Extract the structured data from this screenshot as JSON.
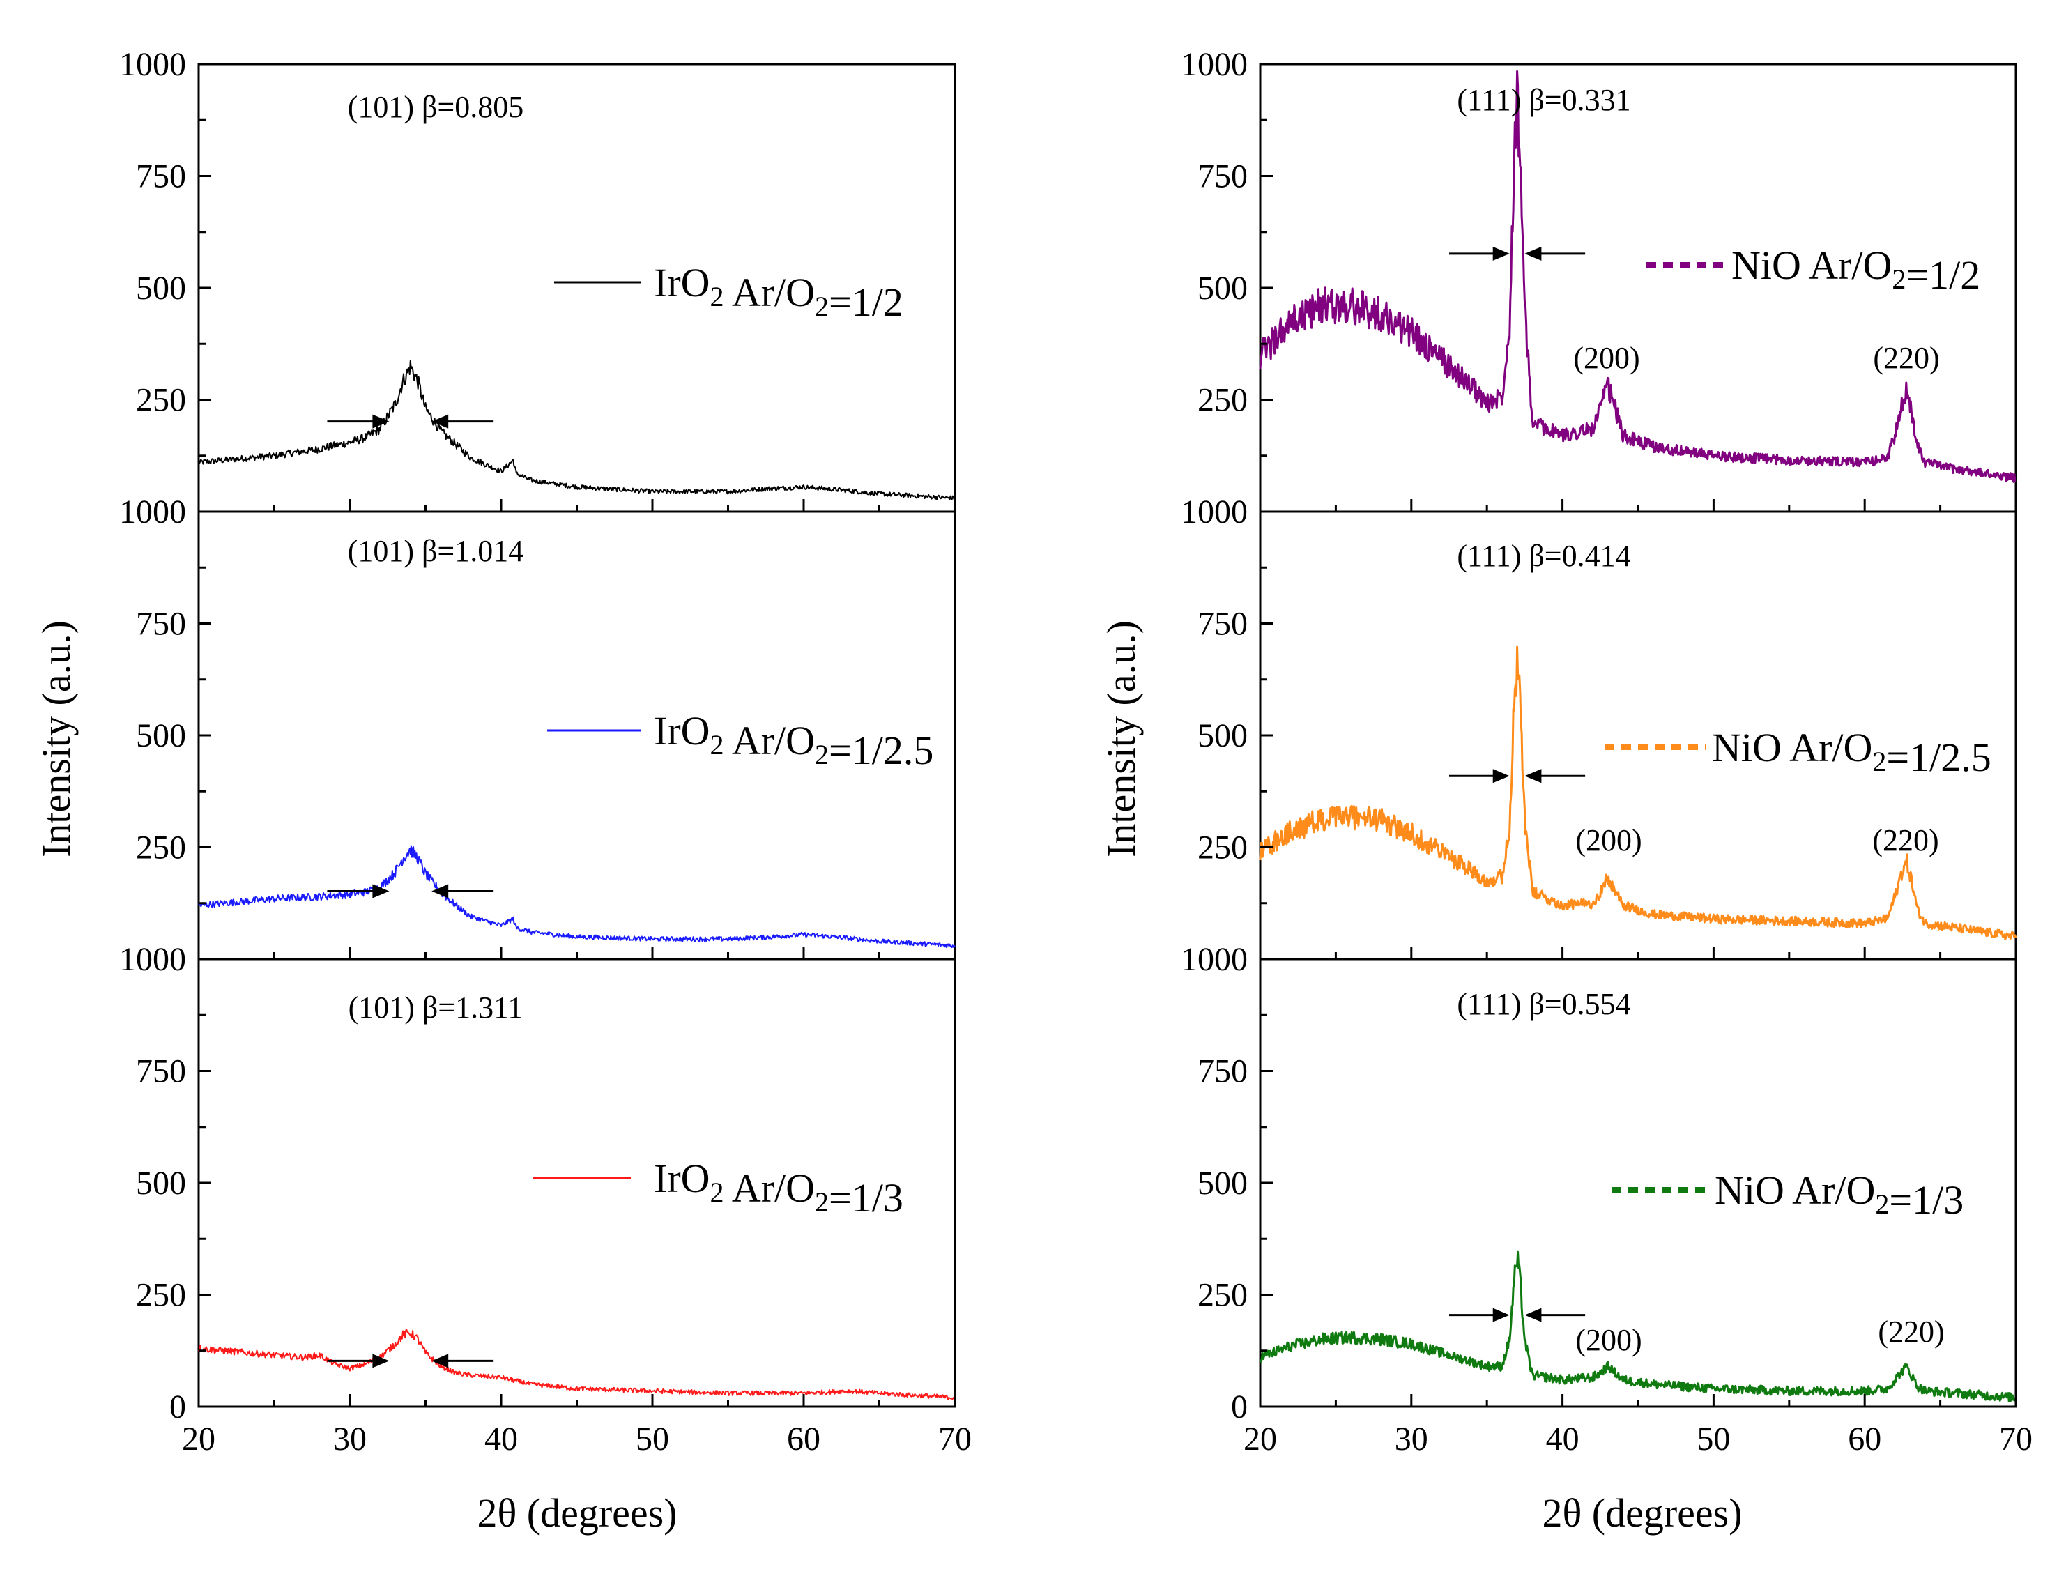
{
  "figure": {
    "left": {
      "ylabel": "Intensity (a.u.)",
      "xlabel": "2θ (degrees)",
      "x_ticks": [
        "20",
        "30",
        "40",
        "50",
        "60",
        "70"
      ],
      "y_ticks": [
        "1000",
        "750",
        "500",
        "250",
        "0"
      ]
    },
    "right": {
      "ylabel": "Intensity (a.u.)",
      "xlabel": "2θ (degrees)",
      "x_ticks": [
        "20",
        "30",
        "40",
        "50",
        "60",
        "70"
      ],
      "y_ticks": [
        "1000",
        "750",
        "500",
        "250",
        "0"
      ]
    }
  },
  "chart_data": [
    {
      "type": "line",
      "xlim": [
        20,
        70
      ],
      "ylim": [
        0,
        1000
      ],
      "grid": false,
      "legend_position": "right",
      "series": [
        {
          "name": "IrO₂ Ar/O₂=1/2",
          "legend": {
            "pre": "IrO",
            "sub1": "2",
            "mid": " Ar/O",
            "sub2": "2",
            "post": "=1/2"
          },
          "color": "#000000",
          "dash": "solid",
          "x": [
            20,
            25,
            28,
            30,
            31,
            32,
            33,
            33.5,
            34,
            34.5,
            35,
            36,
            37,
            38,
            40,
            40.8,
            41,
            42,
            45,
            50,
            55,
            58,
            60,
            62,
            65,
            70
          ],
          "y": [
            110,
            125,
            140,
            155,
            165,
            185,
            240,
            290,
            325,
            290,
            230,
            180,
            150,
            120,
            90,
            115,
            85,
            70,
            55,
            45,
            45,
            52,
            55,
            50,
            40,
            30
          ]
        },
        {
          "name": "IrO₂ Ar/O₂=1/2.5",
          "legend": {
            "pre": "IrO",
            "sub1": "2",
            "mid": " Ar/O",
            "sub2": "2",
            "post": "=1/2.5"
          },
          "color": "#1a1aff",
          "dash": "solid",
          "x": [
            20,
            25,
            28,
            30,
            31,
            32,
            33,
            33.5,
            34,
            34.5,
            35,
            36,
            37,
            38,
            40,
            40.8,
            41,
            42,
            45,
            50,
            55,
            58,
            60,
            62,
            65,
            70
          ],
          "y": [
            120,
            135,
            140,
            145,
            150,
            160,
            195,
            225,
            245,
            225,
            190,
            150,
            120,
            95,
            75,
            90,
            70,
            60,
            50,
            45,
            45,
            50,
            55,
            50,
            40,
            30
          ]
        },
        {
          "name": "IrO₂ Ar/O₂=1/3",
          "legend": {
            "pre": "IrO",
            "sub1": "2",
            "mid": " Ar/O",
            "sub2": "2",
            "post": "=1/3"
          },
          "color": "#ff1a1a",
          "dash": "solid",
          "x": [
            20,
            25,
            27,
            28,
            29,
            30,
            31,
            32,
            33,
            33.5,
            34,
            34.5,
            35,
            36,
            37,
            38,
            40,
            42,
            45,
            50,
            55,
            60,
            63,
            65,
            70
          ],
          "y": [
            130,
            115,
            110,
            115,
            95,
            85,
            95,
            110,
            140,
            160,
            165,
            150,
            120,
            90,
            75,
            70,
            65,
            50,
            40,
            35,
            30,
            30,
            35,
            30,
            20
          ]
        }
      ],
      "annotations": [
        {
          "text": "(101)  β=0.805"
        },
        {
          "text": "(101) β=1.014"
        },
        {
          "text": "(101) β=1.311"
        }
      ]
    },
    {
      "type": "line",
      "xlim": [
        20,
        70
      ],
      "ylim": [
        0,
        1000
      ],
      "grid": false,
      "legend_position": "right",
      "series": [
        {
          "name": "NiO Ar/O₂=1/2",
          "legend": {
            "pre": "NiO Ar/O",
            "sub1": "2",
            "mid": "",
            "sub2": "",
            "post": "=1/2"
          },
          "color": "#800080",
          "dash": "dashed",
          "x": [
            20,
            22,
            24,
            26,
            28,
            30,
            32,
            34,
            35,
            36,
            36.5,
            36.8,
            37,
            37.2,
            37.5,
            38,
            40,
            42,
            42.5,
            43,
            43.5,
            44,
            46,
            50,
            55,
            60,
            61.5,
            62,
            62.5,
            62.8,
            63,
            63.5,
            64,
            66,
            70
          ],
          "y": [
            350,
            420,
            460,
            460,
            440,
            400,
            340,
            280,
            240,
            260,
            420,
            800,
            930,
            800,
            450,
            200,
            170,
            185,
            230,
            280,
            230,
            170,
            145,
            125,
            115,
            110,
            120,
            170,
            240,
            270,
            240,
            150,
            110,
            95,
            75
          ]
        },
        {
          "name": "NiO Ar/O₂=1/2.5",
          "legend": {
            "pre": "NiO Ar/O",
            "sub1": "2",
            "mid": "",
            "sub2": "",
            "post": "=1/2.5"
          },
          "color": "#ff8c1a",
          "dash": "dashed",
          "x": [
            20,
            22,
            24,
            26,
            28,
            30,
            32,
            34,
            35,
            36,
            36.5,
            36.8,
            37,
            37.2,
            37.5,
            38,
            40,
            42,
            42.5,
            43,
            43.5,
            44,
            46,
            50,
            55,
            60,
            61.5,
            62,
            62.5,
            62.8,
            63,
            63.5,
            64,
            66,
            70
          ],
          "y": [
            240,
            285,
            310,
            320,
            310,
            280,
            240,
            200,
            175,
            185,
            300,
            560,
            660,
            560,
            320,
            150,
            120,
            125,
            150,
            180,
            150,
            120,
            100,
            90,
            85,
            80,
            90,
            140,
            200,
            215,
            190,
            110,
            80,
            70,
            50
          ]
        },
        {
          "name": "NiO Ar/O₂=1/3",
          "legend": {
            "pre": "NiO Ar/O",
            "sub1": "2",
            "mid": "",
            "sub2": "",
            "post": "=1/3"
          },
          "color": "#0f7a0f",
          "dash": "dashed",
          "x": [
            20,
            22,
            24,
            26,
            28,
            30,
            32,
            34,
            35,
            36,
            36.5,
            36.8,
            37,
            37.2,
            37.5,
            38,
            40,
            42,
            42.5,
            43,
            43.5,
            44,
            46,
            50,
            55,
            60,
            61.5,
            62,
            62.5,
            62.8,
            63,
            63.5,
            64,
            66,
            70
          ],
          "y": [
            110,
            135,
            150,
            155,
            150,
            140,
            120,
            100,
            90,
            90,
            150,
            280,
            330,
            280,
            150,
            70,
            60,
            65,
            75,
            90,
            75,
            60,
            50,
            40,
            35,
            35,
            40,
            60,
            80,
            90,
            75,
            45,
            35,
            30,
            20
          ]
        }
      ],
      "annotations": [
        {
          "text": "(111)  β=0.331"
        },
        {
          "text": "(200)"
        },
        {
          "text": "(220)"
        },
        {
          "text": "(111)  β=0.414"
        },
        {
          "text": "(200)"
        },
        {
          "text": "(220)"
        },
        {
          "text": "(111)  β=0.554"
        },
        {
          "text": "(200)"
        },
        {
          "text": "(220)"
        }
      ]
    }
  ]
}
